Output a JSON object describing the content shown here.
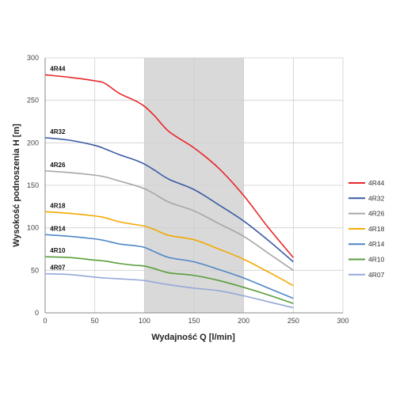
{
  "chart_data": {
    "type": "line",
    "title": "",
    "xlabel": "Wydajność Q [l/min]",
    "ylabel": "Wysokość podnoszenia H [m]",
    "xlim": [
      0,
      300
    ],
    "ylim": [
      0,
      300
    ],
    "xticks": [
      0,
      50,
      100,
      150,
      200,
      250,
      300
    ],
    "yticks": [
      0,
      50,
      100,
      150,
      200,
      250,
      300
    ],
    "grid": true,
    "shaded_region": {
      "x_from": 100,
      "x_to": 200,
      "color": "#d9d9d9"
    },
    "legend_position": "right",
    "series": [
      {
        "name": "4R44",
        "color": "#e8262a",
        "points": [
          [
            0,
            280
          ],
          [
            25,
            277
          ],
          [
            50,
            273
          ],
          [
            60,
            270
          ],
          [
            75,
            258
          ],
          [
            90,
            250
          ],
          [
            100,
            243
          ],
          [
            110,
            232
          ],
          [
            125,
            213
          ],
          [
            150,
            194
          ],
          [
            175,
            170
          ],
          [
            200,
            138
          ],
          [
            225,
            100
          ],
          [
            250,
            65
          ]
        ]
      },
      {
        "name": "4R32",
        "color": "#3b5ba5",
        "points": [
          [
            0,
            206
          ],
          [
            25,
            203
          ],
          [
            50,
            197
          ],
          [
            60,
            193
          ],
          [
            75,
            186
          ],
          [
            90,
            180
          ],
          [
            100,
            175
          ],
          [
            110,
            168
          ],
          [
            125,
            157
          ],
          [
            150,
            145
          ],
          [
            175,
            127
          ],
          [
            200,
            108
          ],
          [
            225,
            85
          ],
          [
            250,
            60
          ]
        ]
      },
      {
        "name": "4R26",
        "color": "#a6a6a6",
        "points": [
          [
            0,
            167
          ],
          [
            25,
            165
          ],
          [
            50,
            162
          ],
          [
            60,
            160
          ],
          [
            75,
            155
          ],
          [
            90,
            150
          ],
          [
            100,
            146
          ],
          [
            110,
            140
          ],
          [
            125,
            130
          ],
          [
            150,
            120
          ],
          [
            175,
            105
          ],
          [
            200,
            90
          ],
          [
            225,
            70
          ],
          [
            250,
            50
          ]
        ]
      },
      {
        "name": "4R18",
        "color": "#f2a900",
        "points": [
          [
            0,
            119
          ],
          [
            25,
            117
          ],
          [
            50,
            114
          ],
          [
            60,
            112
          ],
          [
            75,
            107
          ],
          [
            90,
            104
          ],
          [
            100,
            102
          ],
          [
            110,
            98
          ],
          [
            125,
            91
          ],
          [
            150,
            86
          ],
          [
            175,
            75
          ],
          [
            200,
            63
          ],
          [
            225,
            48
          ],
          [
            250,
            32
          ]
        ]
      },
      {
        "name": "4R14",
        "color": "#4f86c6",
        "points": [
          [
            0,
            92
          ],
          [
            25,
            90
          ],
          [
            50,
            87
          ],
          [
            60,
            85
          ],
          [
            75,
            81
          ],
          [
            90,
            79
          ],
          [
            100,
            77
          ],
          [
            110,
            72
          ],
          [
            125,
            65
          ],
          [
            150,
            60
          ],
          [
            175,
            51
          ],
          [
            200,
            41
          ],
          [
            225,
            29
          ],
          [
            250,
            17
          ]
        ]
      },
      {
        "name": "4R10",
        "color": "#5a9e3a",
        "points": [
          [
            0,
            66
          ],
          [
            25,
            65
          ],
          [
            50,
            62
          ],
          [
            60,
            61
          ],
          [
            75,
            58
          ],
          [
            90,
            56
          ],
          [
            100,
            55
          ],
          [
            110,
            52
          ],
          [
            125,
            47
          ],
          [
            150,
            44
          ],
          [
            175,
            38
          ],
          [
            200,
            30
          ],
          [
            225,
            21
          ],
          [
            250,
            11
          ]
        ]
      },
      {
        "name": "4R07",
        "color": "#94a8d8",
        "points": [
          [
            0,
            46
          ],
          [
            25,
            45
          ],
          [
            50,
            42
          ],
          [
            60,
            41
          ],
          [
            75,
            40
          ],
          [
            90,
            39
          ],
          [
            100,
            38
          ],
          [
            110,
            36
          ],
          [
            125,
            33
          ],
          [
            150,
            29
          ],
          [
            175,
            26
          ],
          [
            200,
            20
          ],
          [
            225,
            13
          ],
          [
            250,
            6
          ]
        ]
      }
    ]
  }
}
